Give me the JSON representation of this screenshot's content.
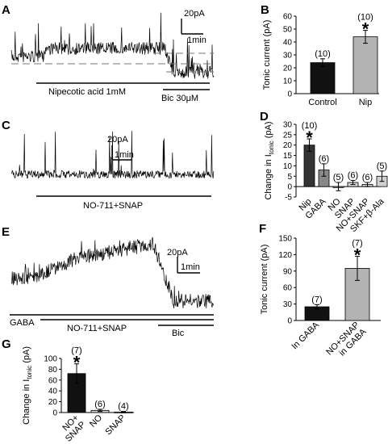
{
  "panels": {
    "A": {
      "label": "A",
      "scale": {
        "y": "20pA",
        "x": "1min"
      },
      "bars": [
        {
          "label": "Nipecotic acid 1mM"
        },
        {
          "label": "Bic 30μM"
        }
      ]
    },
    "C": {
      "label": "C",
      "scale": {
        "y": "20pA",
        "x": "1min"
      },
      "bars": [
        {
          "label": "NO-711+SNAP"
        }
      ]
    },
    "E": {
      "label": "E",
      "scale": {
        "y": "20pA",
        "x": "1min"
      },
      "bars": [
        {
          "label": "GABA"
        },
        {
          "label": "NO-711+SNAP"
        },
        {
          "label": "Bic"
        }
      ]
    }
  },
  "chart_data": [
    {
      "id": "B",
      "label": "B",
      "type": "bar",
      "ylabel": "Tonic current (pA)",
      "ylim": [
        0,
        60
      ],
      "yticks": [
        0,
        10,
        20,
        30,
        40,
        50,
        60
      ],
      "categories": [
        "Control",
        "Nip"
      ],
      "values": [
        24,
        44
      ],
      "errors": [
        3,
        5
      ],
      "n_labels": [
        "(10)",
        "(10)"
      ],
      "significance": [
        "",
        "*"
      ],
      "colors": [
        "#111111",
        "#b3b3b3"
      ]
    },
    {
      "id": "D",
      "label": "D",
      "type": "bar",
      "ylabel_prefix": "Change in I",
      "ylabel_sub": "tonic",
      "ylabel_suffix": " (pA)",
      "ylim": [
        -5,
        30
      ],
      "yticks": [
        -5,
        0,
        5,
        10,
        15,
        20,
        25,
        30
      ],
      "categories": [
        "Nip",
        "GABA",
        "NO",
        "SNAP",
        "NO+SNAP",
        "SKF+β-Ala"
      ],
      "values": [
        20,
        8,
        0,
        2,
        1,
        5
      ],
      "errors": [
        3,
        3,
        2,
        1,
        1,
        2.5
      ],
      "n_labels": [
        "(10)",
        "(6)",
        "(5)",
        "(6)",
        "(6)",
        "(5)"
      ],
      "significance": [
        "*",
        "",
        "",
        "",
        "",
        ""
      ],
      "colors": [
        "#333333",
        "#888888",
        "#d0d0d0",
        "#d0d0d0",
        "#d0d0d0",
        "#d0d0d0"
      ]
    },
    {
      "id": "F",
      "label": "F",
      "type": "bar",
      "ylabel": "Tonic current (pA)",
      "ylim": [
        0,
        150
      ],
      "yticks": [
        0,
        30,
        60,
        90,
        120,
        150
      ],
      "categories": [
        "In GABA",
        "NO+SNAP in GABA"
      ],
      "values": [
        25,
        95
      ],
      "errors": [
        4,
        22
      ],
      "n_labels": [
        "(7)",
        "(7)"
      ],
      "significance": [
        "",
        "*"
      ],
      "colors": [
        "#111111",
        "#b3b3b3"
      ]
    },
    {
      "id": "G",
      "label": "G",
      "type": "bar",
      "ylabel_prefix": "Change in I",
      "ylabel_sub": "tonic",
      "ylabel_suffix": " (pA)",
      "ylim": [
        0,
        100
      ],
      "yticks": [
        0,
        20,
        40,
        60,
        80,
        100
      ],
      "categories": [
        "NO+ SNAP",
        "NO",
        "SNAP"
      ],
      "values": [
        72,
        4,
        1
      ],
      "errors": [
        18,
        2,
        1
      ],
      "n_labels": [
        "(7)",
        "(6)",
        "(4)"
      ],
      "significance": [
        "*",
        "",
        ""
      ],
      "colors": [
        "#111111",
        "#d0d0d0",
        "#d0d0d0"
      ]
    }
  ]
}
